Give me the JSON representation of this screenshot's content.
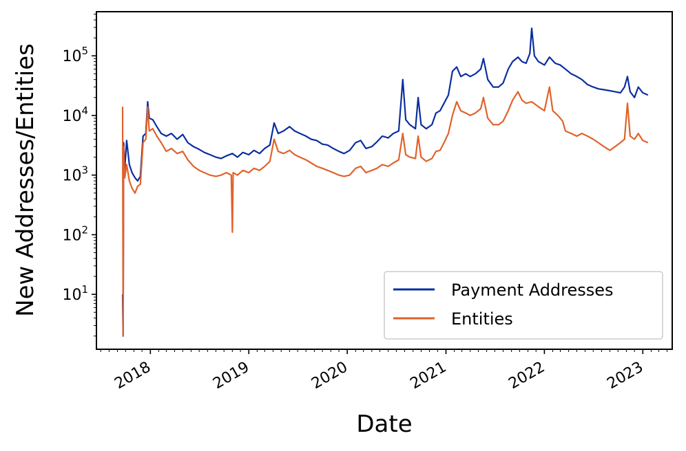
{
  "chart_data": {
    "type": "line",
    "title": "",
    "xlabel": "Date",
    "ylabel": "New Addresses/Entities",
    "yscale": "log",
    "ylim": [
      1.2,
      550000
    ],
    "xlim": [
      "2017-06-15",
      "2023-04-20"
    ],
    "grid": false,
    "legend_position": "lower-right",
    "x_ticks": [
      {
        "date": "2018-01-01",
        "label": "2018"
      },
      {
        "date": "2019-01-01",
        "label": "2019"
      },
      {
        "date": "2020-01-01",
        "label": "2020"
      },
      {
        "date": "2021-01-01",
        "label": "2021"
      },
      {
        "date": "2022-01-01",
        "label": "2022"
      },
      {
        "date": "2023-01-01",
        "label": "2023"
      }
    ],
    "y_ticks": [
      {
        "value": 10,
        "base": "10",
        "exp": "1"
      },
      {
        "value": 100,
        "base": "10",
        "exp": "2"
      },
      {
        "value": 1000,
        "base": "10",
        "exp": "3"
      },
      {
        "value": 10000,
        "base": "10",
        "exp": "4"
      },
      {
        "value": 100000,
        "base": "10",
        "exp": "5"
      }
    ],
    "series": [
      {
        "name": "Payment Addresses",
        "color": "#0a2ea0",
        "points": [
          [
            "2017-09-20",
            10
          ],
          [
            "2017-09-22",
            2
          ],
          [
            "2017-09-24",
            3500
          ],
          [
            "2017-09-28",
            1300
          ],
          [
            "2017-10-05",
            3800
          ],
          [
            "2017-10-15",
            1500
          ],
          [
            "2017-10-25",
            1100
          ],
          [
            "2017-11-05",
            900
          ],
          [
            "2017-11-15",
            800
          ],
          [
            "2017-11-25",
            950
          ],
          [
            "2017-12-05",
            4500
          ],
          [
            "2017-12-15",
            5000
          ],
          [
            "2017-12-22",
            17000
          ],
          [
            "2017-12-28",
            9000
          ],
          [
            "2018-01-10",
            8500
          ],
          [
            "2018-01-25",
            6500
          ],
          [
            "2018-02-10",
            5000
          ],
          [
            "2018-03-01",
            4500
          ],
          [
            "2018-03-20",
            5000
          ],
          [
            "2018-04-10",
            4000
          ],
          [
            "2018-05-01",
            4800
          ],
          [
            "2018-05-20",
            3500
          ],
          [
            "2018-06-10",
            3000
          ],
          [
            "2018-07-01",
            2700
          ],
          [
            "2018-07-20",
            2400
          ],
          [
            "2018-08-10",
            2200
          ],
          [
            "2018-09-01",
            2000
          ],
          [
            "2018-09-20",
            1900
          ],
          [
            "2018-10-10",
            2100
          ],
          [
            "2018-11-01",
            2300
          ],
          [
            "2018-11-20",
            2000
          ],
          [
            "2018-12-10",
            2400
          ],
          [
            "2019-01-01",
            2200
          ],
          [
            "2019-01-20",
            2600
          ],
          [
            "2019-02-10",
            2300
          ],
          [
            "2019-03-01",
            2800
          ],
          [
            "2019-03-20",
            3200
          ],
          [
            "2019-04-05",
            7500
          ],
          [
            "2019-04-20",
            5000
          ],
          [
            "2019-05-10",
            5500
          ],
          [
            "2019-06-01",
            6500
          ],
          [
            "2019-06-20",
            5500
          ],
          [
            "2019-07-10",
            5000
          ],
          [
            "2019-08-01",
            4500
          ],
          [
            "2019-08-20",
            4000
          ],
          [
            "2019-09-10",
            3800
          ],
          [
            "2019-10-01",
            3300
          ],
          [
            "2019-10-20",
            3200
          ],
          [
            "2019-11-10",
            2800
          ],
          [
            "2019-12-01",
            2500
          ],
          [
            "2019-12-20",
            2300
          ],
          [
            "2020-01-10",
            2600
          ],
          [
            "2020-02-01",
            3500
          ],
          [
            "2020-02-20",
            3800
          ],
          [
            "2020-03-10",
            2800
          ],
          [
            "2020-04-01",
            3000
          ],
          [
            "2020-04-20",
            3600
          ],
          [
            "2020-05-10",
            4500
          ],
          [
            "2020-06-01",
            4200
          ],
          [
            "2020-06-20",
            5000
          ],
          [
            "2020-07-10",
            5500
          ],
          [
            "2020-07-25",
            40000
          ],
          [
            "2020-08-05",
            8500
          ],
          [
            "2020-08-20",
            7000
          ],
          [
            "2020-09-10",
            6000
          ],
          [
            "2020-09-20",
            20000
          ],
          [
            "2020-10-01",
            7000
          ],
          [
            "2020-10-20",
            6000
          ],
          [
            "2020-11-10",
            7000
          ],
          [
            "2020-11-25",
            11000
          ],
          [
            "2020-12-10",
            12000
          ],
          [
            "2020-12-25",
            16000
          ],
          [
            "2021-01-10",
            22000
          ],
          [
            "2021-01-25",
            55000
          ],
          [
            "2021-02-10",
            65000
          ],
          [
            "2021-02-25",
            45000
          ],
          [
            "2021-03-15",
            50000
          ],
          [
            "2021-04-01",
            45000
          ],
          [
            "2021-04-20",
            50000
          ],
          [
            "2021-05-10",
            60000
          ],
          [
            "2021-05-20",
            90000
          ],
          [
            "2021-06-05",
            40000
          ],
          [
            "2021-06-25",
            30000
          ],
          [
            "2021-07-15",
            30000
          ],
          [
            "2021-08-01",
            35000
          ],
          [
            "2021-08-20",
            60000
          ],
          [
            "2021-09-05",
            80000
          ],
          [
            "2021-09-25",
            95000
          ],
          [
            "2021-10-10",
            80000
          ],
          [
            "2021-10-25",
            75000
          ],
          [
            "2021-11-08",
            110000
          ],
          [
            "2021-11-15",
            290000
          ],
          [
            "2021-11-25",
            100000
          ],
          [
            "2021-12-10",
            80000
          ],
          [
            "2022-01-01",
            70000
          ],
          [
            "2022-01-20",
            95000
          ],
          [
            "2022-02-10",
            75000
          ],
          [
            "2022-03-01",
            70000
          ],
          [
            "2022-03-20",
            60000
          ],
          [
            "2022-04-10",
            50000
          ],
          [
            "2022-05-01",
            45000
          ],
          [
            "2022-05-20",
            40000
          ],
          [
            "2022-06-10",
            33000
          ],
          [
            "2022-07-01",
            30000
          ],
          [
            "2022-07-20",
            28000
          ],
          [
            "2022-08-10",
            27000
          ],
          [
            "2022-09-01",
            26000
          ],
          [
            "2022-09-20",
            25000
          ],
          [
            "2022-10-10",
            24000
          ],
          [
            "2022-10-25",
            30000
          ],
          [
            "2022-11-05",
            45000
          ],
          [
            "2022-11-15",
            25000
          ],
          [
            "2022-12-01",
            20000
          ],
          [
            "2022-12-15",
            30000
          ],
          [
            "2023-01-01",
            24000
          ],
          [
            "2023-01-20",
            22000
          ]
        ]
      },
      {
        "name": "Entities",
        "color": "#e0622a",
        "points": [
          [
            "2017-09-20",
            14000
          ],
          [
            "2017-09-22",
            2
          ],
          [
            "2017-09-24",
            3000
          ],
          [
            "2017-09-28",
            900
          ],
          [
            "2017-10-05",
            1500
          ],
          [
            "2017-10-15",
            800
          ],
          [
            "2017-10-25",
            600
          ],
          [
            "2017-11-05",
            500
          ],
          [
            "2017-11-15",
            650
          ],
          [
            "2017-11-25",
            700
          ],
          [
            "2017-12-05",
            3500
          ],
          [
            "2017-12-15",
            4000
          ],
          [
            "2017-12-22",
            14000
          ],
          [
            "2017-12-28",
            5500
          ],
          [
            "2018-01-10",
            6000
          ],
          [
            "2018-01-25",
            4500
          ],
          [
            "2018-02-10",
            3500
          ],
          [
            "2018-03-01",
            2500
          ],
          [
            "2018-03-20",
            2800
          ],
          [
            "2018-04-10",
            2300
          ],
          [
            "2018-05-01",
            2500
          ],
          [
            "2018-05-20",
            1800
          ],
          [
            "2018-06-10",
            1400
          ],
          [
            "2018-07-01",
            1200
          ],
          [
            "2018-07-20",
            1100
          ],
          [
            "2018-08-10",
            1000
          ],
          [
            "2018-09-01",
            950
          ],
          [
            "2018-09-20",
            1000
          ],
          [
            "2018-10-10",
            1100
          ],
          [
            "2018-10-28",
            1000
          ],
          [
            "2018-11-01",
            110
          ],
          [
            "2018-11-04",
            1100
          ],
          [
            "2018-11-20",
            1000
          ],
          [
            "2018-12-10",
            1200
          ],
          [
            "2019-01-01",
            1100
          ],
          [
            "2019-01-20",
            1300
          ],
          [
            "2019-02-10",
            1200
          ],
          [
            "2019-03-01",
            1400
          ],
          [
            "2019-03-20",
            1700
          ],
          [
            "2019-04-05",
            4000
          ],
          [
            "2019-04-20",
            2500
          ],
          [
            "2019-05-10",
            2300
          ],
          [
            "2019-06-01",
            2600
          ],
          [
            "2019-06-20",
            2200
          ],
          [
            "2019-07-10",
            2000
          ],
          [
            "2019-08-01",
            1800
          ],
          [
            "2019-08-20",
            1600
          ],
          [
            "2019-09-10",
            1400
          ],
          [
            "2019-10-01",
            1300
          ],
          [
            "2019-10-20",
            1200
          ],
          [
            "2019-11-10",
            1100
          ],
          [
            "2019-12-01",
            1000
          ],
          [
            "2019-12-20",
            950
          ],
          [
            "2020-01-10",
            1000
          ],
          [
            "2020-02-01",
            1300
          ],
          [
            "2020-02-20",
            1400
          ],
          [
            "2020-03-10",
            1100
          ],
          [
            "2020-04-01",
            1200
          ],
          [
            "2020-04-20",
            1300
          ],
          [
            "2020-05-10",
            1500
          ],
          [
            "2020-06-01",
            1400
          ],
          [
            "2020-06-20",
            1600
          ],
          [
            "2020-07-10",
            1800
          ],
          [
            "2020-07-25",
            5000
          ],
          [
            "2020-08-05",
            2200
          ],
          [
            "2020-08-20",
            2000
          ],
          [
            "2020-09-10",
            1900
          ],
          [
            "2020-09-20",
            4500
          ],
          [
            "2020-10-01",
            2000
          ],
          [
            "2020-10-20",
            1700
          ],
          [
            "2020-11-10",
            1900
          ],
          [
            "2020-11-25",
            2500
          ],
          [
            "2020-12-10",
            2600
          ],
          [
            "2020-12-25",
            3500
          ],
          [
            "2021-01-10",
            5000
          ],
          [
            "2021-01-25",
            10000
          ],
          [
            "2021-02-10",
            17000
          ],
          [
            "2021-02-25",
            12000
          ],
          [
            "2021-03-15",
            11000
          ],
          [
            "2021-04-01",
            10000
          ],
          [
            "2021-04-20",
            11000
          ],
          [
            "2021-05-10",
            13000
          ],
          [
            "2021-05-20",
            20000
          ],
          [
            "2021-06-05",
            9000
          ],
          [
            "2021-06-25",
            7000
          ],
          [
            "2021-07-15",
            7000
          ],
          [
            "2021-08-01",
            8000
          ],
          [
            "2021-08-20",
            12000
          ],
          [
            "2021-09-05",
            18000
          ],
          [
            "2021-09-25",
            25000
          ],
          [
            "2021-10-10",
            18000
          ],
          [
            "2021-10-25",
            16000
          ],
          [
            "2021-11-15",
            17000
          ],
          [
            "2021-12-10",
            14000
          ],
          [
            "2022-01-01",
            12000
          ],
          [
            "2022-01-20",
            30000
          ],
          [
            "2022-02-01",
            12000
          ],
          [
            "2022-02-20",
            10000
          ],
          [
            "2022-03-10",
            8000
          ],
          [
            "2022-03-20",
            5500
          ],
          [
            "2022-04-10",
            5000
          ],
          [
            "2022-05-01",
            4500
          ],
          [
            "2022-05-20",
            5000
          ],
          [
            "2022-06-10",
            4500
          ],
          [
            "2022-07-01",
            4000
          ],
          [
            "2022-07-20",
            3500
          ],
          [
            "2022-08-10",
            3000
          ],
          [
            "2022-09-01",
            2600
          ],
          [
            "2022-09-20",
            3000
          ],
          [
            "2022-10-10",
            3500
          ],
          [
            "2022-10-25",
            4000
          ],
          [
            "2022-11-05",
            16000
          ],
          [
            "2022-11-15",
            4500
          ],
          [
            "2022-12-01",
            4000
          ],
          [
            "2022-12-15",
            5000
          ],
          [
            "2023-01-01",
            3800
          ],
          [
            "2023-01-20",
            3500
          ]
        ]
      }
    ]
  }
}
